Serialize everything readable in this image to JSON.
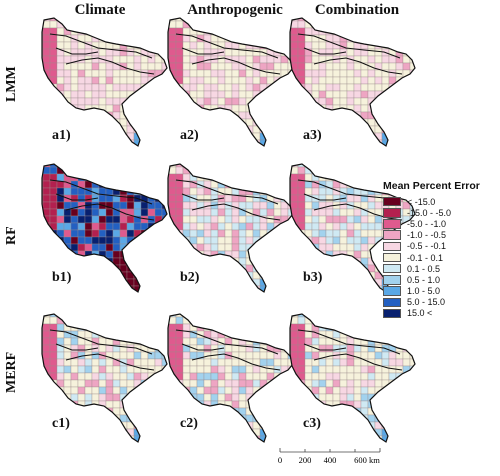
{
  "columns": [
    "Climate",
    "Anthropogenic",
    "Combination"
  ],
  "rows": [
    "LMM",
    "RF",
    "MERF"
  ],
  "panels": [
    {
      "label": "a1)",
      "row": 0,
      "col": 0,
      "scheme": "mild"
    },
    {
      "label": "a2)",
      "row": 0,
      "col": 1,
      "scheme": "mild"
    },
    {
      "label": "a3)",
      "row": 0,
      "col": 2,
      "scheme": "mild"
    },
    {
      "label": "b1)",
      "row": 1,
      "col": 0,
      "scheme": "extreme"
    },
    {
      "label": "b2)",
      "row": 1,
      "col": 1,
      "scheme": "mixed"
    },
    {
      "label": "b3)",
      "row": 1,
      "col": 2,
      "scheme": "mixed"
    },
    {
      "label": "c1)",
      "row": 2,
      "col": 0,
      "scheme": "mixed_light"
    },
    {
      "label": "c2)",
      "row": 2,
      "col": 1,
      "scheme": "mixed_light"
    },
    {
      "label": "c3)",
      "row": 2,
      "col": 2,
      "scheme": "mixed_light"
    }
  ],
  "legend": {
    "title": "Mean Percent Error",
    "items": [
      {
        "label": "< -15.0",
        "color": "#67001f"
      },
      {
        "label": "-15.0 - -5.0",
        "color": "#b3204f"
      },
      {
        "label": "-5.0 - -1.0",
        "color": "#df5a8e"
      },
      {
        "label": "-1.0 - -0.5",
        "color": "#eea5c3"
      },
      {
        "label": "-0.5 - -0.1",
        "color": "#f7d7e3"
      },
      {
        "label": "-0.1 - 0.1",
        "color": "#f6f2dc"
      },
      {
        "label": "0.1 - 0.5",
        "color": "#cfe9f3"
      },
      {
        "label": "0.5 - 1.0",
        "color": "#a2d2ee"
      },
      {
        "label": "1.0 - 5.0",
        "color": "#5aa8e6"
      },
      {
        "label": "5.0 - 15.0",
        "color": "#2360c2"
      },
      {
        "label": "15.0 <",
        "color": "#08206f"
      }
    ]
  },
  "scalebar": {
    "ticks": [
      "0",
      "200",
      "400",
      "600 km"
    ]
  }
}
